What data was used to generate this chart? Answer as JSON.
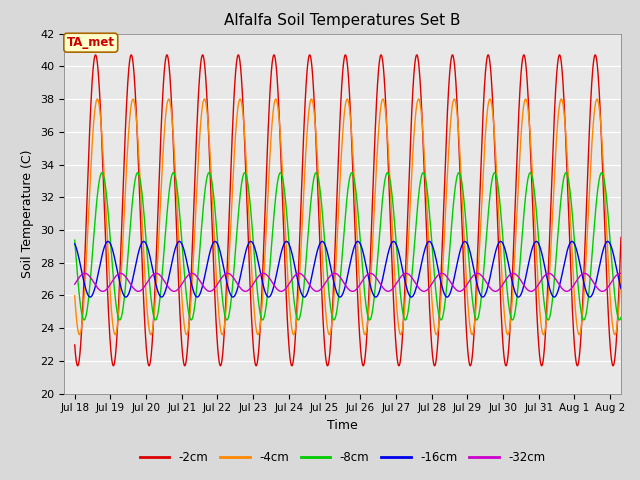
{
  "title": "Alfalfa Soil Temperatures Set B",
  "xlabel": "Time",
  "ylabel": "Soil Temperature (C)",
  "ylim": [
    20,
    42
  ],
  "background_color": "#d9d9d9",
  "plot_bg_color": "#e8e8e8",
  "grid_color": "white",
  "ta_met_label": "TA_met",
  "x_tick_labels": [
    "Jul 18",
    "Jul 19",
    "Jul 20",
    "Jul 21",
    "Jul 22",
    "Jul 23",
    "Jul 24",
    "Jul 25",
    "Jul 26",
    "Jul 27",
    "Jul 28",
    "Jul 29",
    "Jul 30",
    "Jul 31",
    "Aug 1",
    "Aug 2"
  ],
  "series": [
    {
      "label": "-2cm",
      "color": "#dd0000",
      "amplitude": 9.5,
      "mean": 31.2,
      "phase_days": 0.0
    },
    {
      "label": "-4cm",
      "color": "#ff8800",
      "amplitude": 7.2,
      "mean": 30.8,
      "phase_days": 0.05
    },
    {
      "label": "-8cm",
      "color": "#00cc00",
      "amplitude": 4.5,
      "mean": 29.0,
      "phase_days": 0.18
    },
    {
      "label": "-16cm",
      "color": "#0000ee",
      "amplitude": 1.7,
      "mean": 27.6,
      "phase_days": 0.35
    },
    {
      "label": "-32cm",
      "color": "#cc00cc",
      "amplitude": 0.55,
      "mean": 26.8,
      "phase_days": 0.7
    }
  ]
}
